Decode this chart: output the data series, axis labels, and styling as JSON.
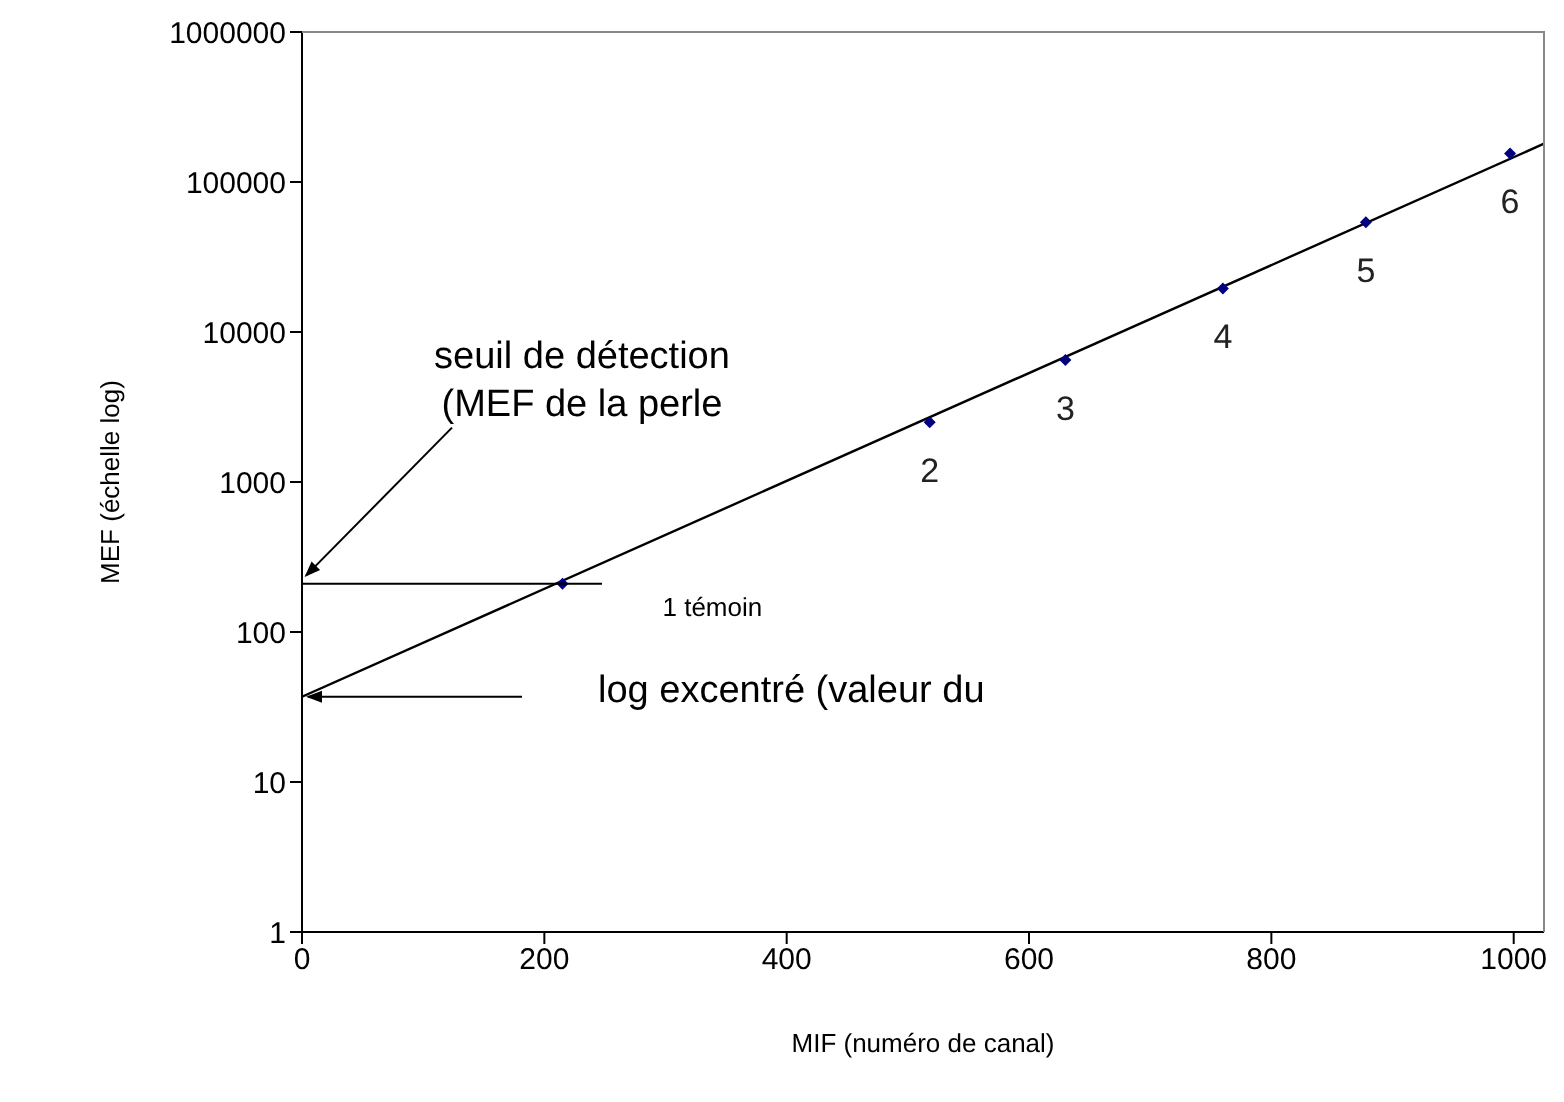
{
  "chart_data": {
    "type": "scatter",
    "xlabel": "MIF (numéro de canal)",
    "ylabel": "MEF (échelle log)",
    "log": true,
    "xlim": [
      0,
      1025
    ],
    "xticks": [
      0,
      200,
      400,
      600,
      800,
      1000
    ],
    "ylim": [
      1,
      1000000
    ],
    "yticks": [
      1,
      10,
      100,
      1000,
      10000,
      100000,
      1000000
    ],
    "series": [
      {
        "x": [
          215,
          518,
          630,
          760,
          878,
          997
        ],
        "values": [
          210,
          2500,
          6500,
          19500,
          54000,
          155000
        ],
        "color": "#000080",
        "marker": "diamond"
      },
      {
        "type": "line",
        "x": [
          0,
          1025
        ],
        "values": [
          37,
          180000
        ],
        "color": "#000000",
        "line_style": "solid",
        "marker": "none"
      }
    ],
    "annotations": [
      "seuil de détection (MEF de la perle",
      "1 témoin",
      {
        "text": "2",
        "x": 518,
        "y": 2500
      },
      {
        "text": "3",
        "x": 630,
        "y": 6500
      },
      {
        "text": "4",
        "x": 760,
        "y": 19500
      },
      {
        "text": "5",
        "x": 878,
        "y": 54000
      },
      {
        "text": "6",
        "x": 997,
        "y": 155000
      },
      "log excentré (valeur du"
    ]
  }
}
